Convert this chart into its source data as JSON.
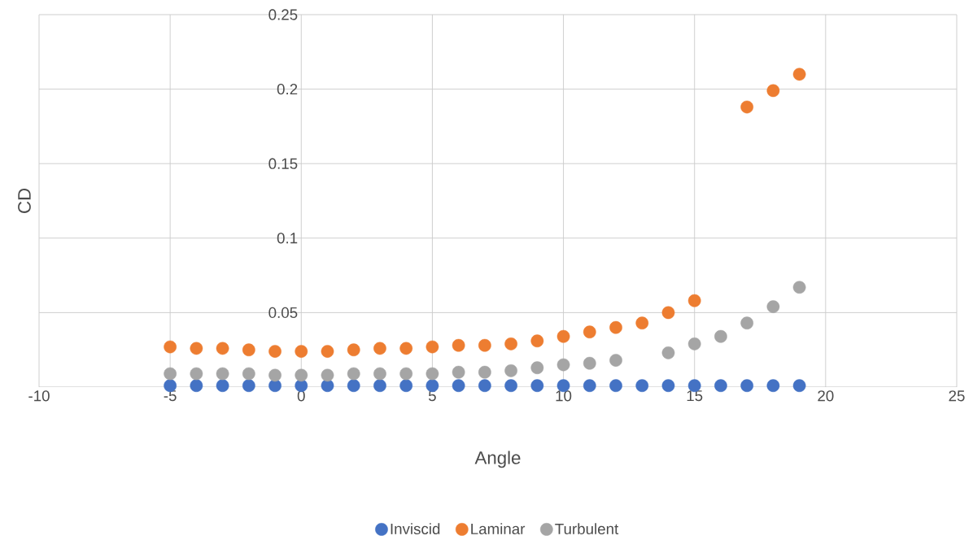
{
  "chart_data": {
    "type": "scatter",
    "xlabel": "Angle",
    "ylabel": "CD",
    "x": [
      -5,
      -4,
      -3,
      -2,
      -1,
      0,
      1,
      2,
      3,
      4,
      5,
      6,
      7,
      8,
      9,
      10,
      11,
      12,
      13,
      14,
      15,
      16,
      17,
      18,
      19
    ],
    "series": [
      {
        "name": "Inviscid",
        "color": "#4472c4",
        "values": [
          0.001,
          0.001,
          0.001,
          0.001,
          0.001,
          0.001,
          0.001,
          0.001,
          0.001,
          0.001,
          0.001,
          0.001,
          0.001,
          0.001,
          0.001,
          0.001,
          0.001,
          0.001,
          0.001,
          0.001,
          0.001,
          0.001,
          0.001,
          0.001,
          0.001
        ]
      },
      {
        "name": "Laminar",
        "color": "#ed7d31",
        "values": [
          0.027,
          0.026,
          0.026,
          0.025,
          0.024,
          0.024,
          0.024,
          0.025,
          0.026,
          0.026,
          0.027,
          0.028,
          0.028,
          0.029,
          0.031,
          0.034,
          0.037,
          0.04,
          0.043,
          0.05,
          0.058,
          null,
          0.188,
          0.199,
          0.21
        ]
      },
      {
        "name": "Turbulent",
        "color": "#a5a5a5",
        "values": [
          0.009,
          0.009,
          0.009,
          0.009,
          0.008,
          0.008,
          0.008,
          0.009,
          0.009,
          0.009,
          0.009,
          0.01,
          0.01,
          0.011,
          0.013,
          0.015,
          0.016,
          0.018,
          null,
          0.023,
          0.029,
          0.034,
          0.043,
          0.054,
          0.067
        ]
      }
    ],
    "xlim": [
      -10,
      25
    ],
    "xticks": [
      -10,
      -5,
      0,
      5,
      10,
      15,
      20,
      25
    ],
    "ylim": [
      0,
      0.25
    ],
    "yticks": [
      0.05,
      0.1,
      0.15,
      0.2,
      0.25
    ],
    "grid": true,
    "legend": "bottom",
    "marker": "circle"
  }
}
